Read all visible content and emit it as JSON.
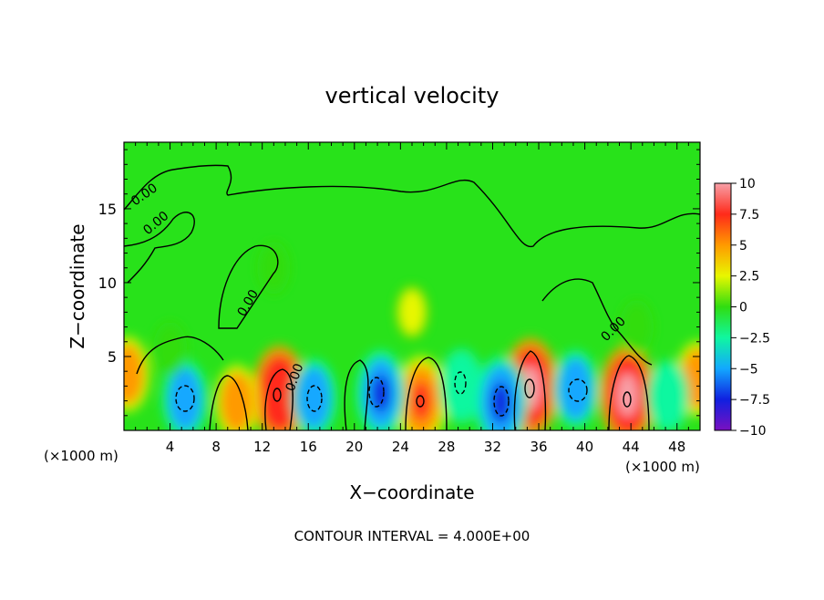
{
  "chart_data": {
    "type": "heatmap",
    "title": "vertical velocity",
    "xlabel": "X−coordinate",
    "ylabel": "Z−coordinate",
    "x_unit_left": "(×1000 m)",
    "x_unit_right": "(×1000 m)",
    "footer": "CONTOUR INTERVAL = 4.000E+00",
    "xlim": [
      0,
      50
    ],
    "ylim": [
      0,
      19.5
    ],
    "x_ticks": [
      4,
      8,
      12,
      16,
      20,
      24,
      28,
      32,
      36,
      40,
      44,
      48
    ],
    "y_ticks": [
      5,
      10,
      15
    ],
    "colorbar": {
      "range": [
        -10,
        10
      ],
      "ticks": [
        10,
        7.5,
        5,
        2.5,
        0,
        -2.5,
        -5,
        -7.5,
        -10
      ],
      "tick_labels": [
        "10",
        "7.5",
        "5",
        "2.5",
        "0",
        "−2.5",
        "−5",
        "−7.5",
        "−10"
      ],
      "colors": [
        "#f7a0a8",
        "#ff2a1a",
        "#ff9a00",
        "#e8f700",
        "#30dd10",
        "#10f7a0",
        "#12a8ff",
        "#1020e0",
        "#7a10c0"
      ]
    },
    "contour_labels": [
      "0.00",
      "0.00",
      "0.00",
      "0.00",
      "0.00"
    ],
    "features": [
      {
        "x": 13.5,
        "z": 2.5,
        "w": 8.5
      },
      {
        "x": 25.8,
        "z": 2.0,
        "w": 7.5
      },
      {
        "x": 35.3,
        "z": 2.9,
        "w": 9.0
      },
      {
        "x": 43.7,
        "z": 2.4,
        "w": 9.0
      },
      {
        "x": 9.8,
        "z": 1.9,
        "w": 5.0
      },
      {
        "x": 0.3,
        "z": 3.8,
        "w": 5.0
      },
      {
        "x": 49.8,
        "z": 3.5,
        "w": 5.0
      },
      {
        "x": 5.3,
        "z": 2.1,
        "w": -5.5
      },
      {
        "x": 16.5,
        "z": 2.2,
        "w": -5.5
      },
      {
        "x": 22.3,
        "z": 2.5,
        "w": -7.0
      },
      {
        "x": 29.3,
        "z": 3.0,
        "w": -5.0
      },
      {
        "x": 32.7,
        "z": 1.9,
        "w": -8.0
      },
      {
        "x": 39.2,
        "z": 2.8,
        "w": -5.5
      },
      {
        "x": 47.2,
        "z": 2.3,
        "w": -4.5
      },
      {
        "x": 25.0,
        "z": 8.0,
        "w": 1.8
      },
      {
        "x": 13.0,
        "z": 11.0,
        "w": -1.2
      },
      {
        "x": 44.5,
        "z": 7.0,
        "w": -1.5
      },
      {
        "x": 4.0,
        "z": 5.5,
        "w": -1.5
      }
    ]
  }
}
